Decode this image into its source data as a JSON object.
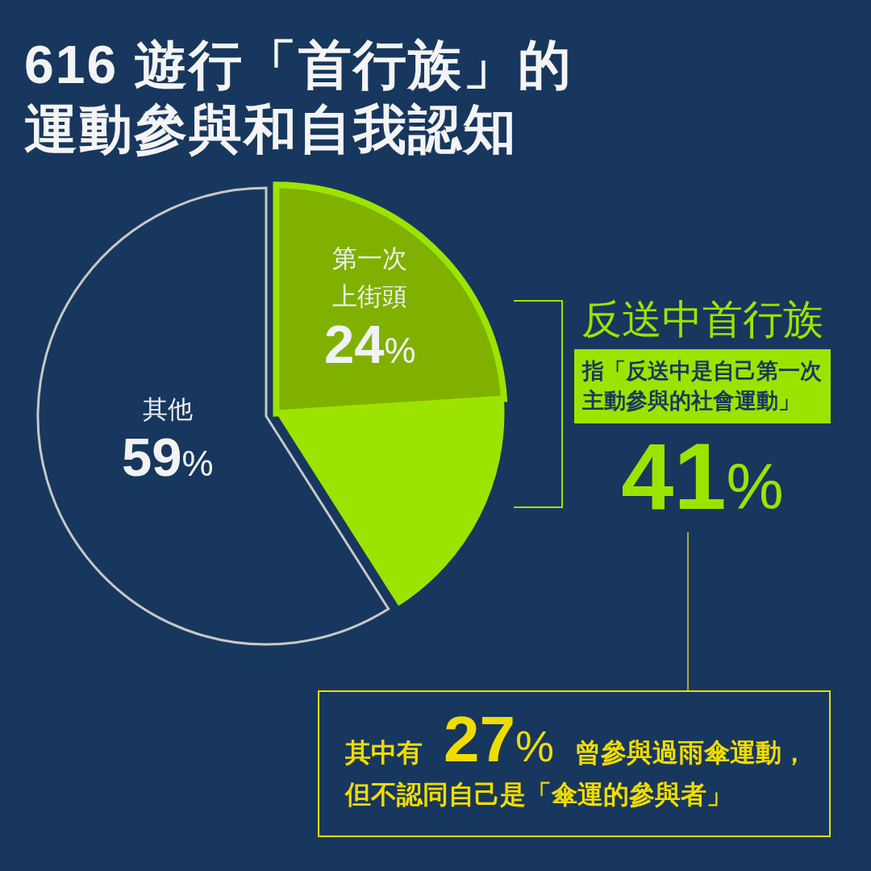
{
  "chart_data": {
    "type": "pie",
    "title": "616 遊行「首行族」的運動參與和自我認知",
    "categories": [
      "第一次上街頭",
      null,
      "其他"
    ],
    "values": [
      24,
      17,
      59
    ],
    "colors": [
      "#80b100",
      "#9de300",
      "#17375e"
    ],
    "value_labels": [
      "24%",
      null,
      "59%"
    ],
    "annotations": [
      "反送中首行族",
      "指「反送中是自己第一次主動參與的社會運動」",
      "41%",
      "其中有",
      "27%",
      "曾參與過雨傘運動，",
      "但不認同自己是「傘運的參與者」"
    ]
  }
}
